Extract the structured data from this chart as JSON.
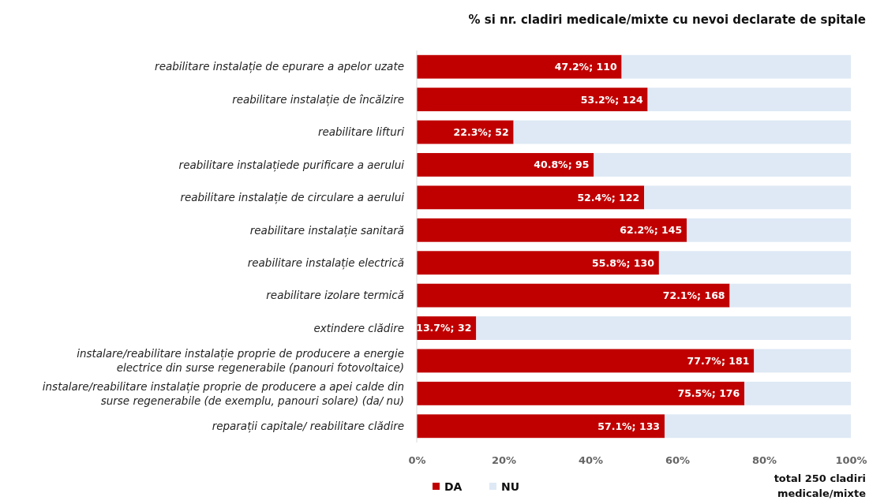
{
  "chart_data": {
    "type": "bar",
    "orientation": "horizontal",
    "stacked": true,
    "title": "% si nr. cladiri medicale/mixte cu nevoi declarate de spitale",
    "categories": [
      "reabilitare instalație de epurare a apelor uzate",
      "reabilitare instalație de încălzire",
      "reabilitare lifturi",
      "reabilitare instalațiede purificare a aerului",
      "reabilitare instalație de circulare a aerului",
      "reabilitare instalație sanitară",
      "reabilitare instalație electrică",
      "reabilitare izolare termică",
      "extindere clădire",
      "instalare/reabilitare instalație proprie de producere a energie\nelectrice din surse regenerabile (panouri fotovoltaice)",
      "instalare/reabilitare instalație proprie de producere a apei calde din\nsurse regenerabile (de exemplu, panouri solare)  (da/ nu)",
      "reparații capitale/ reabilitare clădire"
    ],
    "series": [
      {
        "name": "DA",
        "color": "#c00000",
        "values": [
          47.2,
          53.2,
          22.3,
          40.8,
          52.4,
          62.2,
          55.8,
          72.1,
          13.7,
          77.7,
          75.5,
          57.1
        ],
        "value_labels": [
          "47.2%; 110",
          "53.2%; 124",
          "22.3%; 52",
          "40.8%; 95",
          "52.4%; 122",
          "62.2%; 145",
          "55.8%; 130",
          "72.1%; 168",
          "13.7%; 32",
          "77.7%; 181",
          "75.5%; 176",
          "57.1%; 133"
        ]
      },
      {
        "name": "NU",
        "color": "#dee9f5",
        "values": [
          52.8,
          46.8,
          77.7,
          59.2,
          47.6,
          37.8,
          44.2,
          27.9,
          86.3,
          22.3,
          24.5,
          42.9
        ]
      }
    ],
    "xlim": [
      0,
      100
    ],
    "xticks": [
      {
        "value": 0,
        "label": "0%"
      },
      {
        "value": 20,
        "label": "20%"
      },
      {
        "value": 40,
        "label": "40%"
      },
      {
        "value": 60,
        "label": "60%"
      },
      {
        "value": 80,
        "label": "80%"
      },
      {
        "value": 100,
        "label": "100%"
      }
    ],
    "legend": "bottom left",
    "grid": false,
    "annotations": [
      "total 250 cladiri\nmedicale/mixte"
    ]
  }
}
